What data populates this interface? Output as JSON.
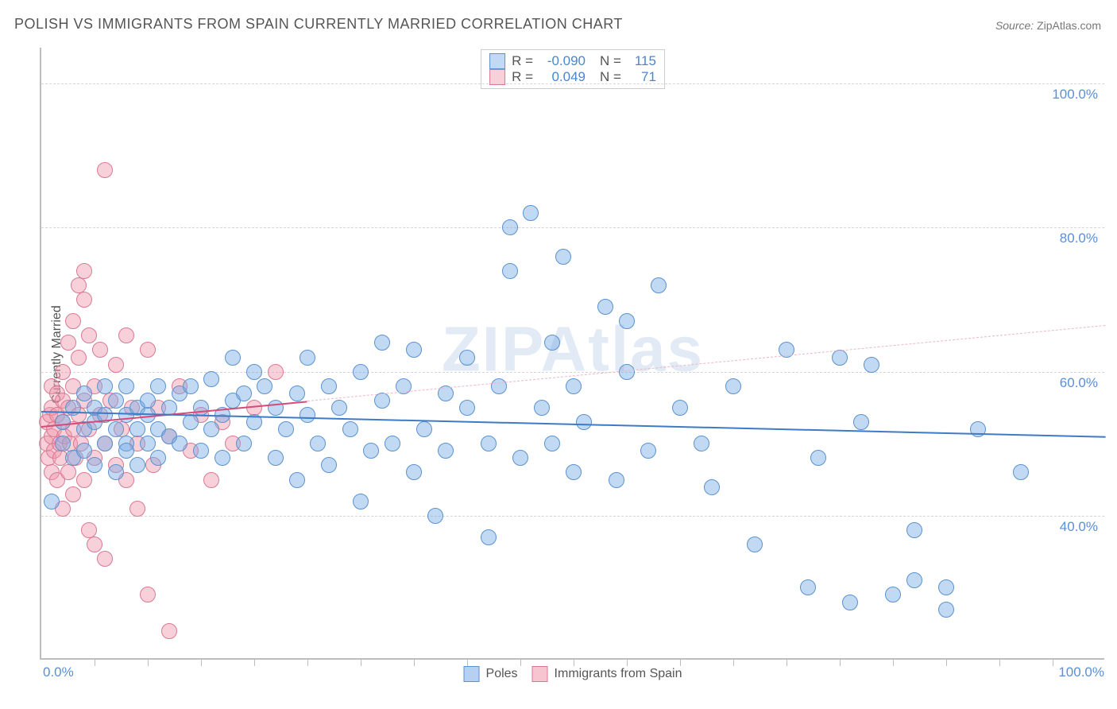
{
  "title": "POLISH VS IMMIGRANTS FROM SPAIN CURRENTLY MARRIED CORRELATION CHART",
  "source_label": "Source:",
  "source_value": "ZipAtlas.com",
  "y_axis_label": "Currently Married",
  "watermark": "ZIPAtlas",
  "chart": {
    "type": "scatter",
    "xlim": [
      0,
      100
    ],
    "ylim": [
      20,
      105
    ],
    "xticks": [
      {
        "pos": 0,
        "label": "0.0%"
      },
      {
        "pos": 100,
        "label": "100.0%"
      }
    ],
    "xminor_step": 5,
    "yticks": [
      {
        "pos": 40,
        "label": "40.0%"
      },
      {
        "pos": 60,
        "label": "60.0%"
      },
      {
        "pos": 80,
        "label": "80.0%"
      },
      {
        "pos": 100,
        "label": "100.0%"
      }
    ],
    "background_color": "#ffffff",
    "grid_color": "#d5d5d5",
    "axis_color": "#bdbdbd",
    "tick_label_color": "#5a8fd6",
    "point_radius": 10,
    "point_border_width": 1.5,
    "series": [
      {
        "name": "Poles",
        "fill": "rgba(120,170,230,0.45)",
        "stroke": "#5b93cd",
        "R": "-0.090",
        "N": "115",
        "trend": {
          "x0": 0,
          "y0": 54.5,
          "x1": 100,
          "y1": 51.0,
          "color": "#3f7bc4",
          "width": 2.5
        },
        "points": [
          [
            1,
            42
          ],
          [
            2,
            50
          ],
          [
            2,
            53
          ],
          [
            3,
            48
          ],
          [
            3,
            55
          ],
          [
            4,
            49
          ],
          [
            4,
            52
          ],
          [
            4,
            57
          ],
          [
            5,
            47
          ],
          [
            5,
            53
          ],
          [
            5,
            55
          ],
          [
            6,
            50
          ],
          [
            6,
            54
          ],
          [
            6,
            58
          ],
          [
            7,
            46
          ],
          [
            7,
            52
          ],
          [
            7,
            56
          ],
          [
            8,
            50
          ],
          [
            8,
            54
          ],
          [
            8,
            58
          ],
          [
            8,
            49
          ],
          [
            9,
            52
          ],
          [
            9,
            55
          ],
          [
            9,
            47
          ],
          [
            10,
            54
          ],
          [
            10,
            56
          ],
          [
            10,
            50
          ],
          [
            11,
            52
          ],
          [
            11,
            58
          ],
          [
            11,
            48
          ],
          [
            12,
            55
          ],
          [
            12,
            51
          ],
          [
            13,
            57
          ],
          [
            13,
            50
          ],
          [
            14,
            53
          ],
          [
            14,
            58
          ],
          [
            15,
            49
          ],
          [
            15,
            55
          ],
          [
            16,
            52
          ],
          [
            16,
            59
          ],
          [
            17,
            54
          ],
          [
            17,
            48
          ],
          [
            18,
            56
          ],
          [
            18,
            62
          ],
          [
            19,
            50
          ],
          [
            19,
            57
          ],
          [
            20,
            53
          ],
          [
            20,
            60
          ],
          [
            21,
            58
          ],
          [
            22,
            48
          ],
          [
            22,
            55
          ],
          [
            23,
            52
          ],
          [
            24,
            57
          ],
          [
            24,
            45
          ],
          [
            25,
            54
          ],
          [
            25,
            62
          ],
          [
            26,
            50
          ],
          [
            27,
            58
          ],
          [
            27,
            47
          ],
          [
            28,
            55
          ],
          [
            29,
            52
          ],
          [
            30,
            60
          ],
          [
            30,
            42
          ],
          [
            31,
            49
          ],
          [
            32,
            56
          ],
          [
            32,
            64
          ],
          [
            33,
            50
          ],
          [
            34,
            58
          ],
          [
            35,
            46
          ],
          [
            35,
            63
          ],
          [
            36,
            52
          ],
          [
            37,
            40
          ],
          [
            38,
            57
          ],
          [
            38,
            49
          ],
          [
            40,
            55
          ],
          [
            40,
            62
          ],
          [
            42,
            50
          ],
          [
            42,
            37
          ],
          [
            43,
            58
          ],
          [
            44,
            80
          ],
          [
            44,
            74
          ],
          [
            45,
            48
          ],
          [
            46,
            82
          ],
          [
            47,
            55
          ],
          [
            48,
            64
          ],
          [
            48,
            50
          ],
          [
            49,
            76
          ],
          [
            50,
            46
          ],
          [
            50,
            58
          ],
          [
            51,
            53
          ],
          [
            53,
            69
          ],
          [
            54,
            45
          ],
          [
            55,
            60
          ],
          [
            55,
            67
          ],
          [
            57,
            49
          ],
          [
            58,
            72
          ],
          [
            60,
            55
          ],
          [
            62,
            50
          ],
          [
            63,
            44
          ],
          [
            65,
            58
          ],
          [
            67,
            36
          ],
          [
            70,
            63
          ],
          [
            72,
            30
          ],
          [
            73,
            48
          ],
          [
            75,
            62
          ],
          [
            76,
            28
          ],
          [
            77,
            53
          ],
          [
            78,
            61
          ],
          [
            80,
            29
          ],
          [
            82,
            31
          ],
          [
            82,
            38
          ],
          [
            85,
            27
          ],
          [
            85,
            30
          ],
          [
            88,
            52
          ],
          [
            92,
            46
          ]
        ]
      },
      {
        "name": "Immigrants from Spain",
        "fill": "rgba(240,150,170,0.45)",
        "stroke": "#d87a94",
        "R": "0.049",
        "N": "71",
        "trend_solid": {
          "x0": 0,
          "y0": 52.5,
          "x1": 25,
          "y1": 56.0,
          "color": "#d74a78",
          "width": 2
        },
        "trend_dashed": {
          "x0": 25,
          "y0": 56.0,
          "x1": 100,
          "y1": 66.5,
          "color": "#eeb6c5",
          "width": 1.5
        },
        "points": [
          [
            0.5,
            50
          ],
          [
            0.5,
            53
          ],
          [
            0.7,
            48
          ],
          [
            0.8,
            54
          ],
          [
            1,
            46
          ],
          [
            1,
            51
          ],
          [
            1,
            55
          ],
          [
            1,
            58
          ],
          [
            1.2,
            49
          ],
          [
            1.2,
            52
          ],
          [
            1.5,
            45
          ],
          [
            1.5,
            54
          ],
          [
            1.5,
            57
          ],
          [
            1.7,
            50
          ],
          [
            1.8,
            48
          ],
          [
            2,
            53
          ],
          [
            2,
            56
          ],
          [
            2,
            60
          ],
          [
            2,
            41
          ],
          [
            2.2,
            51
          ],
          [
            2.5,
            46
          ],
          [
            2.5,
            55
          ],
          [
            2.5,
            64
          ],
          [
            2.7,
            50
          ],
          [
            3,
            43
          ],
          [
            3,
            52
          ],
          [
            3,
            58
          ],
          [
            3,
            67
          ],
          [
            3.2,
            48
          ],
          [
            3.5,
            54
          ],
          [
            3.5,
            62
          ],
          [
            3.5,
            72
          ],
          [
            3.7,
            50
          ],
          [
            4,
            45
          ],
          [
            4,
            56
          ],
          [
            4,
            70
          ],
          [
            4,
            74
          ],
          [
            4.5,
            52
          ],
          [
            4.5,
            65
          ],
          [
            4.5,
            38
          ],
          [
            5,
            48
          ],
          [
            5,
            58
          ],
          [
            5,
            36
          ],
          [
            5.5,
            54
          ],
          [
            5.5,
            63
          ],
          [
            6,
            50
          ],
          [
            6,
            34
          ],
          [
            6,
            88
          ],
          [
            6.5,
            56
          ],
          [
            7,
            47
          ],
          [
            7,
            61
          ],
          [
            7.5,
            52
          ],
          [
            8,
            45
          ],
          [
            8,
            65
          ],
          [
            8.5,
            55
          ],
          [
            9,
            50
          ],
          [
            9,
            41
          ],
          [
            10,
            29
          ],
          [
            10,
            63
          ],
          [
            10.5,
            47
          ],
          [
            11,
            55
          ],
          [
            12,
            51
          ],
          [
            12,
            24
          ],
          [
            13,
            58
          ],
          [
            14,
            49
          ],
          [
            15,
            54
          ],
          [
            16,
            45
          ],
          [
            17,
            53
          ],
          [
            18,
            50
          ],
          [
            20,
            55
          ],
          [
            22,
            60
          ]
        ]
      }
    ]
  },
  "legend": [
    {
      "label": "Poles",
      "fill": "rgba(120,170,230,0.55)",
      "stroke": "#5b93cd"
    },
    {
      "label": "Immigrants from Spain",
      "fill": "rgba(240,150,170,0.55)",
      "stroke": "#d87a94"
    }
  ]
}
